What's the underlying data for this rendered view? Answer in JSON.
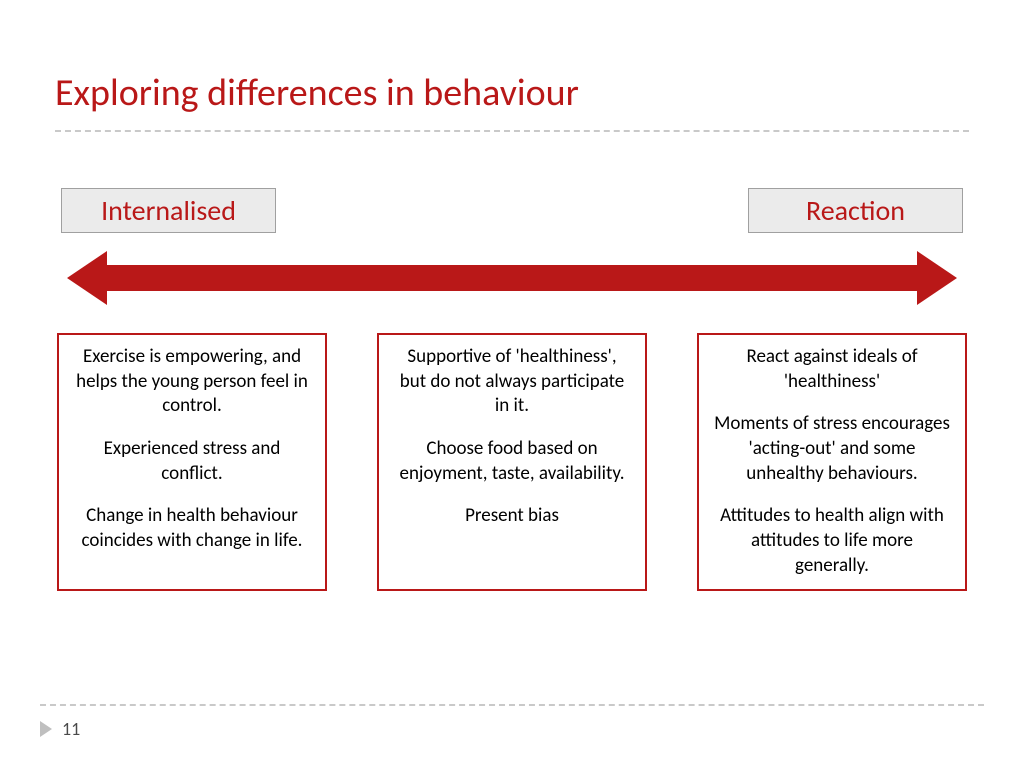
{
  "title": "Exploring differences in behaviour",
  "accent_color": "#b91818",
  "label_bg": "#ebebeb",
  "label_border": "#a0a0a0",
  "divider_color": "#c9c9c9",
  "labels": {
    "left": "Internalised",
    "right": "Reaction"
  },
  "boxes": {
    "left": {
      "p1": "Exercise is empowering, and helps the young person feel in control.",
      "p2": "Experienced stress and conflict.",
      "p3": "Change in health behaviour coincides with change in life."
    },
    "middle": {
      "p1": "Supportive of 'healthiness', but do not always participate in it.",
      "p2": "Choose food based on enjoyment, taste, availability.",
      "p3": "Present bias"
    },
    "right": {
      "p1": "React against ideals of 'healthiness'",
      "p2": "Moments of stress encourages 'acting-out' and some unhealthy behaviours.",
      "p3": "Attitudes to health align with attitudes to life more generally."
    }
  },
  "page_number": "11",
  "fonts": {
    "title_size": 38,
    "label_size": 28,
    "body_size": 19,
    "page_size": 18
  }
}
